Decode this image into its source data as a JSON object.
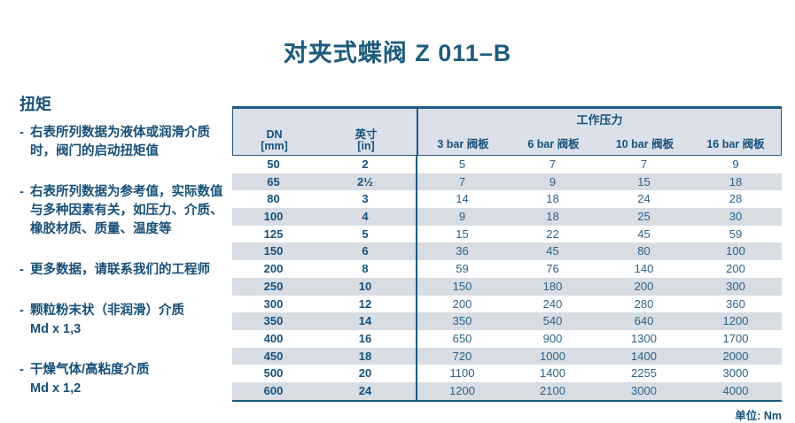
{
  "title": "对夹式蝶阀 Z 011–B",
  "sidebar": {
    "heading": "扭矩",
    "bullets": [
      {
        "dash": "-",
        "text": "右表所列数据为液体或润滑介质时，阀门的启动扭矩值",
        "sub": ""
      },
      {
        "dash": "-",
        "text": "右表所列数据为参考值，实际数值与多种因素有关，如压力、介质、橡胶材质、质量、温度等",
        "sub": ""
      },
      {
        "dash": "-",
        "text": "更多数据，请联系我们的工程师",
        "sub": ""
      },
      {
        "dash": "-",
        "text": "颗粒粉末状（非润滑）介质",
        "sub": "Md x 1,3"
      },
      {
        "dash": "-",
        "text": "干燥气体/高粘度介质",
        "sub": "Md x 1,2"
      }
    ]
  },
  "table": {
    "col_dn": "DN",
    "col_dn_unit": "[mm]",
    "col_inch": "英寸",
    "col_inch_unit": "[in]",
    "group_header": "工作压力",
    "pressure_cols": [
      "3 bar 阀板",
      "6 bar 阀板",
      "10 bar 阀板",
      "16 bar 阀板"
    ],
    "rows": [
      {
        "dn": "50",
        "inch": "2",
        "values": [
          "5",
          "7",
          "7",
          "9"
        ]
      },
      {
        "dn": "65",
        "inch": "2½",
        "values": [
          "7",
          "9",
          "15",
          "18"
        ]
      },
      {
        "dn": "80",
        "inch": "3",
        "values": [
          "14",
          "18",
          "24",
          "28"
        ]
      },
      {
        "dn": "100",
        "inch": "4",
        "values": [
          "9",
          "18",
          "25",
          "30"
        ]
      },
      {
        "dn": "125",
        "inch": "5",
        "values": [
          "15",
          "22",
          "45",
          "59"
        ]
      },
      {
        "dn": "150",
        "inch": "6",
        "values": [
          "36",
          "45",
          "80",
          "100"
        ]
      },
      {
        "dn": "200",
        "inch": "8",
        "values": [
          "59",
          "76",
          "140",
          "200"
        ]
      },
      {
        "dn": "250",
        "inch": "10",
        "values": [
          "150",
          "180",
          "200",
          "300"
        ]
      },
      {
        "dn": "300",
        "inch": "12",
        "values": [
          "200",
          "240",
          "280",
          "360"
        ]
      },
      {
        "dn": "350",
        "inch": "14",
        "values": [
          "350",
          "540",
          "640",
          "1200"
        ]
      },
      {
        "dn": "400",
        "inch": "16",
        "values": [
          "650",
          "900",
          "1300",
          "1700"
        ]
      },
      {
        "dn": "450",
        "inch": "18",
        "values": [
          "720",
          "1000",
          "1400",
          "2000"
        ]
      },
      {
        "dn": "500",
        "inch": "20",
        "values": [
          "1100",
          "1400",
          "2255",
          "3000"
        ]
      },
      {
        "dn": "600",
        "inch": "24",
        "values": [
          "1200",
          "2100",
          "3000",
          "4000"
        ]
      }
    ],
    "unit_note": "单位: Nm"
  },
  "colors": {
    "accent": "#1e5b80",
    "title_text": "#1e5b7d",
    "sidebar_text": "#174f78",
    "header_bg": "#dbe0e9",
    "stripe_bg": "#d8dce3",
    "value_text": "#2e6285"
  }
}
